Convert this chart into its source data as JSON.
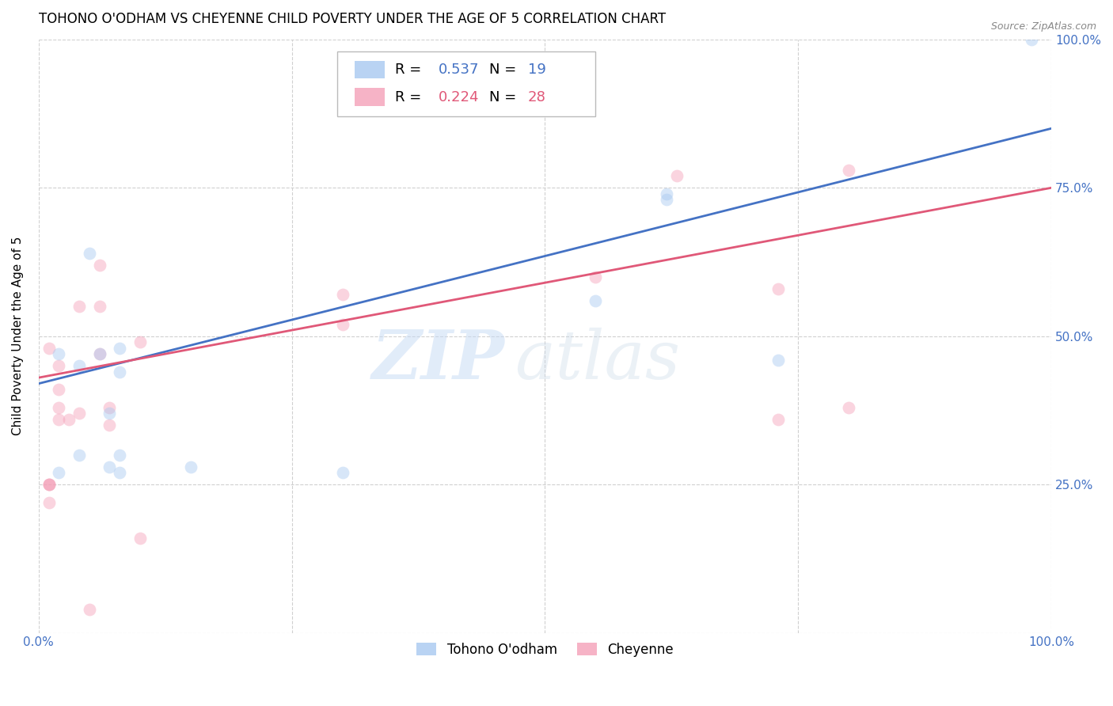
{
  "title": "TOHONO O'ODHAM VS CHEYENNE CHILD POVERTY UNDER THE AGE OF 5 CORRELATION CHART",
  "source": "Source: ZipAtlas.com",
  "ylabel": "Child Poverty Under the Age of 5",
  "xlim": [
    0,
    1
  ],
  "ylim": [
    0,
    1
  ],
  "xticks": [
    0,
    0.25,
    0.5,
    0.75,
    1.0
  ],
  "xticklabels": [
    "0.0%",
    "",
    "",
    "",
    "100.0%"
  ],
  "yticks": [
    0,
    0.25,
    0.5,
    0.75,
    1.0
  ],
  "yticklabels_right": [
    "",
    "25.0%",
    "50.0%",
    "75.0%",
    "100.0%"
  ],
  "tohono_color": "#a8c8f0",
  "cheyenne_color": "#f4a0b8",
  "tohono_line_color": "#4472c4",
  "cheyenne_line_color": "#e05878",
  "tohono_R": 0.537,
  "tohono_N": 19,
  "cheyenne_R": 0.224,
  "cheyenne_N": 28,
  "watermark_zip": "ZIP",
  "watermark_atlas": "atlas",
  "background_color": "#ffffff",
  "grid_color": "#d0d0d0",
  "tohono_points_x": [
    0.02,
    0.02,
    0.04,
    0.04,
    0.05,
    0.06,
    0.07,
    0.07,
    0.08,
    0.08,
    0.08,
    0.08,
    0.15,
    0.3,
    0.55,
    0.62,
    0.62,
    0.73,
    0.98
  ],
  "tohono_points_y": [
    0.27,
    0.47,
    0.3,
    0.45,
    0.64,
    0.47,
    0.37,
    0.28,
    0.27,
    0.3,
    0.44,
    0.48,
    0.28,
    0.27,
    0.56,
    0.73,
    0.74,
    0.46,
    1.0
  ],
  "cheyenne_points_x": [
    0.01,
    0.01,
    0.01,
    0.01,
    0.01,
    0.02,
    0.02,
    0.02,
    0.02,
    0.03,
    0.04,
    0.04,
    0.06,
    0.06,
    0.06,
    0.07,
    0.07,
    0.1,
    0.1,
    0.3,
    0.3,
    0.55,
    0.63,
    0.73,
    0.73,
    0.8,
    0.8,
    0.05
  ],
  "cheyenne_points_y": [
    0.22,
    0.25,
    0.25,
    0.25,
    0.48,
    0.36,
    0.38,
    0.41,
    0.45,
    0.36,
    0.37,
    0.55,
    0.47,
    0.55,
    0.62,
    0.35,
    0.38,
    0.16,
    0.49,
    0.52,
    0.57,
    0.6,
    0.77,
    0.36,
    0.58,
    0.38,
    0.78,
    0.04
  ],
  "tohono_line_intercept": 0.42,
  "tohono_line_slope": 0.43,
  "cheyenne_line_intercept": 0.43,
  "cheyenne_line_slope": 0.32,
  "marker_size": 130,
  "marker_alpha": 0.45,
  "tick_color": "#4472c4",
  "title_fontsize": 12,
  "axis_label_fontsize": 11,
  "tick_fontsize": 11,
  "legend_fontsize": 13
}
